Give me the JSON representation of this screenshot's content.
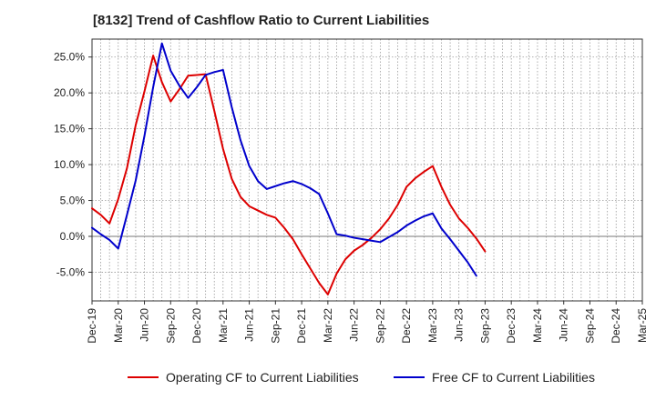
{
  "chart_data": {
    "type": "line",
    "title": "[8132]  Trend of Cashflow Ratio to Current Liabilities",
    "xlabel": "",
    "ylabel": "",
    "x_tick_labels": [
      "Dec-19",
      "Mar-20",
      "Jun-20",
      "Sep-20",
      "Dec-20",
      "Mar-21",
      "Jun-21",
      "Sep-21",
      "Dec-21",
      "Mar-22",
      "Jun-22",
      "Sep-22",
      "Dec-22",
      "Mar-23",
      "Jun-23",
      "Sep-23",
      "Dec-23",
      "Mar-24",
      "Jun-24",
      "Sep-24",
      "Dec-24",
      "Mar-25"
    ],
    "y_tick_labels": [
      "-5.0%",
      "0.0%",
      "5.0%",
      "10.0%",
      "15.0%",
      "20.0%",
      "25.0%"
    ],
    "y_ticks": [
      -5,
      0,
      5,
      10,
      15,
      20,
      25
    ],
    "ylim": [
      -9,
      27.5
    ],
    "grid": true,
    "legend_position": "bottom",
    "series": [
      {
        "name": "Operating CF to Current Liabilities",
        "color": "#dd0000",
        "values": [
          3.9,
          3.0,
          1.8,
          5.2,
          9.5,
          15.5,
          20.2,
          25.2,
          21.5,
          18.8,
          20.5,
          22.4,
          22.5,
          22.6,
          17.5,
          12.2,
          8.0,
          5.5,
          4.2,
          3.6,
          3.0,
          2.6,
          1.2,
          -0.4,
          -2.5,
          -4.5,
          -6.5,
          -8.1,
          -5.2,
          -3.2,
          -2.0,
          -1.2,
          -0.2,
          1.0,
          2.5,
          4.4,
          6.9,
          8.1,
          9.0,
          9.8,
          6.9,
          4.4,
          2.5,
          1.2,
          -0.3,
          -2.1
        ]
      },
      {
        "name": "Free CF to Current Liabilities",
        "color": "#0000cc",
        "values": [
          1.2,
          0.3,
          -0.5,
          -1.7,
          3.0,
          7.8,
          14.0,
          20.8,
          26.9,
          23.1,
          21.0,
          19.3,
          20.8,
          22.5,
          22.9,
          23.2,
          18.0,
          13.4,
          9.8,
          7.7,
          6.6,
          7.0,
          7.4,
          7.7,
          7.3,
          6.7,
          5.9,
          3.2,
          0.3,
          0.1,
          -0.2,
          -0.4,
          -0.6,
          -0.8,
          -0.1,
          0.6,
          1.5,
          2.2,
          2.8,
          3.2,
          1.1,
          -0.4,
          -2.0,
          -3.6,
          -5.5
        ]
      }
    ]
  }
}
